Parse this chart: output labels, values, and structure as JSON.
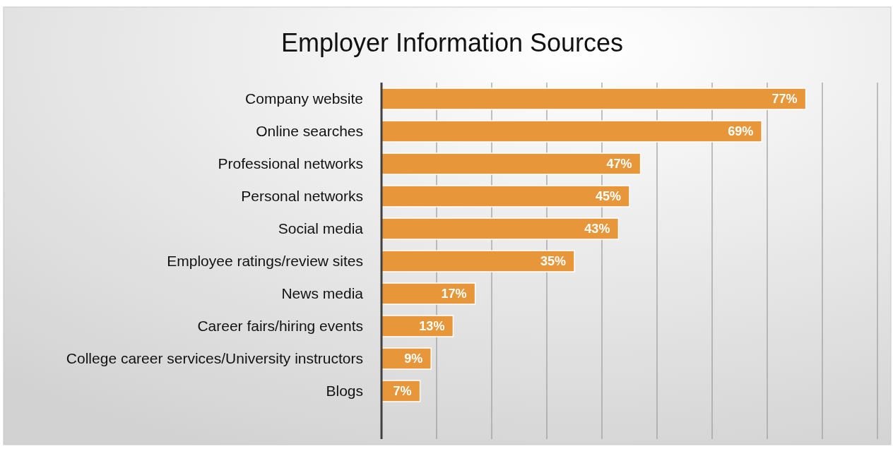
{
  "chart_data": {
    "type": "bar",
    "orientation": "horizontal",
    "title": "Employer Information Sources",
    "categories": [
      "Company website",
      "Online searches",
      "Professional networks",
      "Personal networks",
      "Social media",
      "Employee ratings/review sites",
      "News media",
      "Career fairs/hiring events",
      "College career services/University instructors",
      "Blogs"
    ],
    "values": [
      77,
      69,
      47,
      45,
      43,
      35,
      17,
      13,
      9,
      7
    ],
    "value_labels": [
      "77%",
      "69%",
      "47%",
      "45%",
      "43%",
      "35%",
      "17%",
      "13%",
      "9%",
      "7%"
    ],
    "color": "#e8963a",
    "xlim": [
      0,
      90
    ],
    "xticks": [
      {
        "value": 0,
        "label": null
      },
      {
        "value": 10,
        "label": null
      },
      {
        "value": 20,
        "label": null
      },
      {
        "value": 30,
        "label": null
      },
      {
        "value": 40,
        "label": null
      },
      {
        "value": 50,
        "label": null
      },
      {
        "value": 60,
        "label": null
      },
      {
        "value": 70,
        "label": null
      },
      {
        "value": 80,
        "label": null
      },
      {
        "value": 90,
        "label": null
      }
    ],
    "grid": "x",
    "tick_labels": "y"
  }
}
